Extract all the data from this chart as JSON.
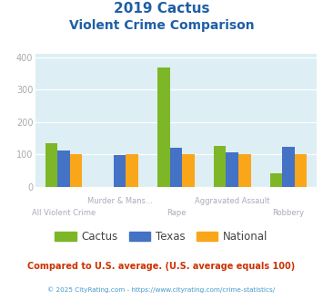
{
  "title_line1": "2019 Cactus",
  "title_line2": "Violent Crime Comparison",
  "categories": [
    "All Violent Crime",
    "Murder & Mans...",
    "Rape",
    "Aggravated Assault",
    "Robbery"
  ],
  "cactus_values": [
    135,
    0,
    368,
    127,
    40
  ],
  "texas_values": [
    112,
    99,
    120,
    107,
    124
  ],
  "national_values": [
    101,
    100,
    101,
    101,
    100
  ],
  "cactus_color": "#7db728",
  "texas_color": "#4472c4",
  "national_color": "#faa61a",
  "bg_color": "#ddeef4",
  "ylim": [
    0,
    410
  ],
  "yticks": [
    0,
    100,
    200,
    300,
    400
  ],
  "title_color": "#1f5fa6",
  "footnote1": "Compared to U.S. average. (U.S. average equals 100)",
  "footnote2": "© 2025 CityRating.com - https://www.cityrating.com/crime-statistics/",
  "footnote1_color": "#cc3300",
  "footnote2_color": "#4499cc",
  "grid_color": "#ffffff",
  "label_color": "#b0a8b8",
  "ytick_color": "#aaaaaa",
  "legend_text_color": "#444444"
}
